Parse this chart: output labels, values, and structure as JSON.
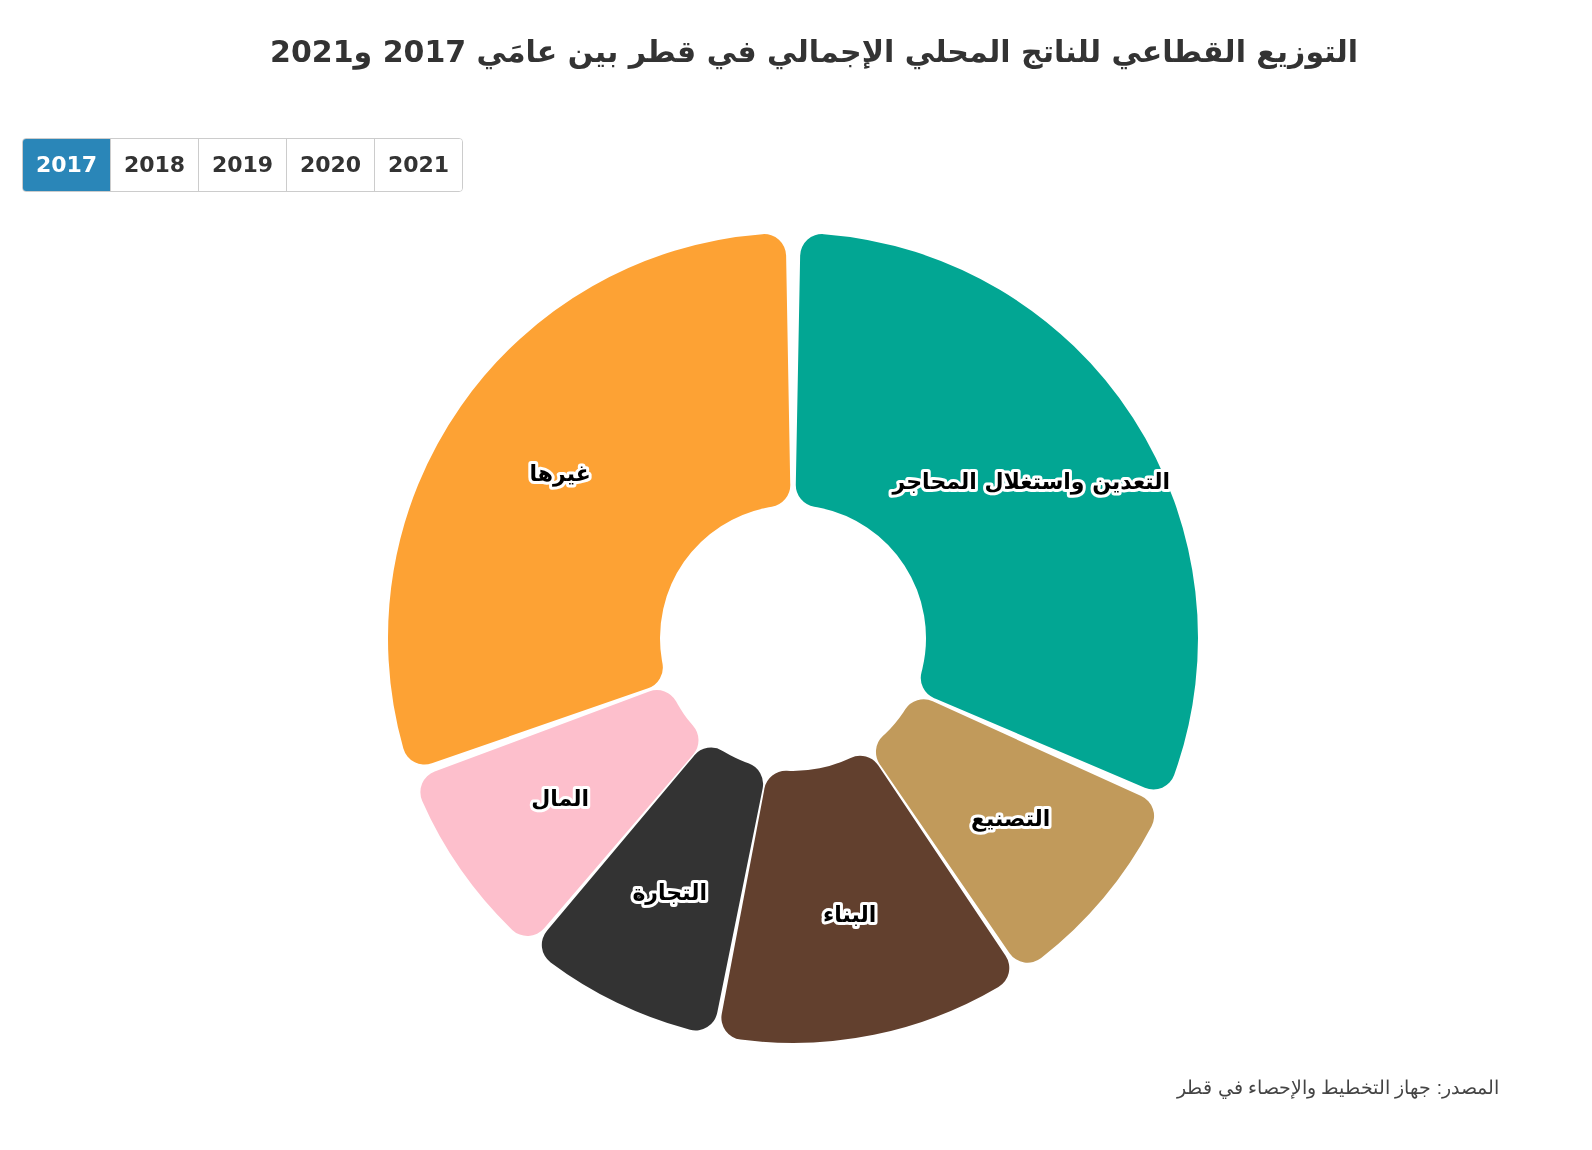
{
  "chart_data": {
    "type": "donut",
    "title": "التوزيع القطاعي للناتج المحلي الإجمالي في قطر بين عامَي 2017 و2021",
    "categories": [
      "التعدين واستغلال المحاجر",
      "التصنيع",
      "البناء",
      "التجارة",
      "المال",
      "غيرها"
    ],
    "values": [
      31.7,
      8.8,
      12.6,
      8.1,
      8.2,
      30.6
    ],
    "colors": [
      "#02a693",
      "#c19a5b",
      "#62402e",
      "#333333",
      "#fdbfcc",
      "#fda234"
    ],
    "legend": false,
    "annotations": [
      "2017",
      "2018",
      "2019",
      "2020",
      "2021",
      "المصدر: جهاز التخطيط والإحصاء في قطر"
    ]
  }
}
